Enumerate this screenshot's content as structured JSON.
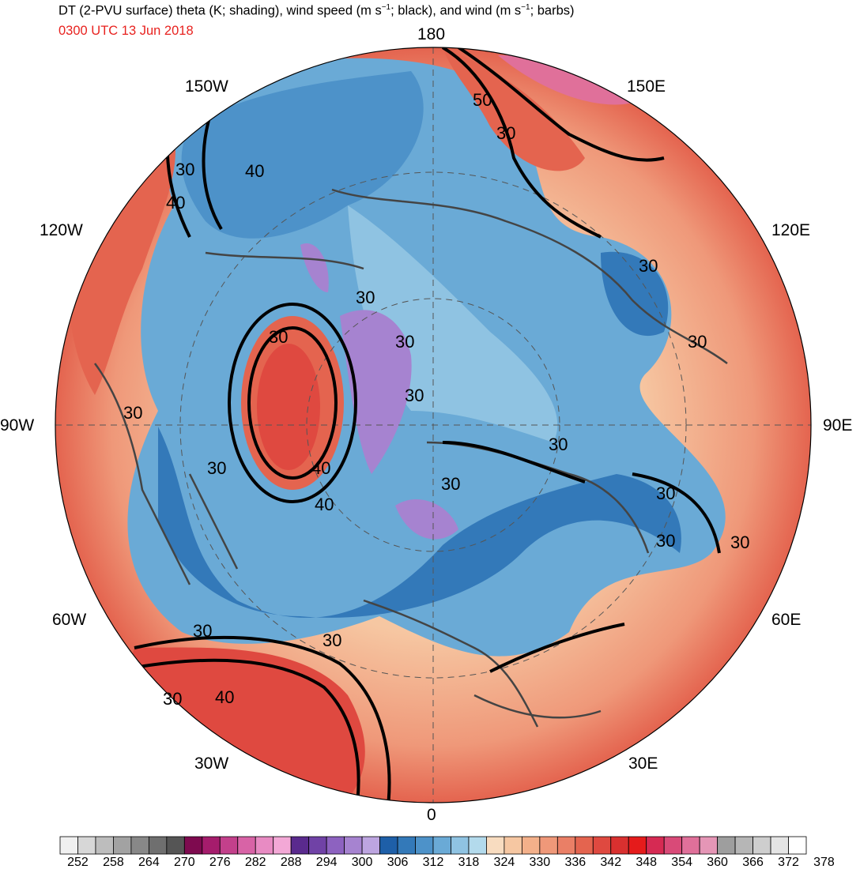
{
  "title": {
    "pre": "DT (2-PVU surface) theta (K; shading), wind speed (m s",
    "sup1": "−1",
    "mid": "; black), and wind (m s",
    "sup2": "−1",
    "post": "; barbs)"
  },
  "valid_time": "0300 UTC 13 Jun 2018",
  "longitude_labels": {
    "n180": "180",
    "w150": "150W",
    "e150": "150E",
    "w120": "120W",
    "e120": "120E",
    "w90": "90W",
    "e90": "90E",
    "w60": "60W",
    "e60": "60E",
    "w30": "30W",
    "e30": "30E",
    "s0": "0"
  },
  "contour_labels": [
    "30",
    "40",
    "50",
    "30",
    "30",
    "40",
    "30",
    "30",
    "30",
    "30",
    "30",
    "30",
    "40",
    "40",
    "30",
    "30",
    "30",
    "30",
    "30",
    "30",
    "30",
    "30",
    "30",
    "40"
  ],
  "colorbar": {
    "tick_labels": [
      "252",
      "258",
      "264",
      "270",
      "276",
      "282",
      "288",
      "294",
      "300",
      "306",
      "312",
      "318",
      "324",
      "330",
      "336",
      "342",
      "348",
      "354",
      "360",
      "366",
      "372",
      "378"
    ],
    "colors": [
      "#f0f0f0",
      "#d7d7d7",
      "#bdbdbd",
      "#a2a2a2",
      "#888888",
      "#6f6f6f",
      "#555555",
      "#7e0a4f",
      "#a51c6c",
      "#c3408b",
      "#d863a6",
      "#e88bc3",
      "#f3a8d6",
      "#5a2a8e",
      "#7042a6",
      "#8d62c0",
      "#a683d0",
      "#bda5e0",
      "#1e5fa8",
      "#3379b9",
      "#4d92c9",
      "#6aaad6",
      "#8fc3e2",
      "#b3daec",
      "#f8dcc0",
      "#f6c7a2",
      "#f3b08a",
      "#ef9879",
      "#ea7f66",
      "#e4644f",
      "#df4940",
      "#d9302f",
      "#e51b1b",
      "#d62a53",
      "#d94a78",
      "#e0709a",
      "#e596b6",
      "#9e9e9e",
      "#b6b6b6",
      "#cecece",
      "#e4e4e4",
      "#ffffff"
    ]
  }
}
